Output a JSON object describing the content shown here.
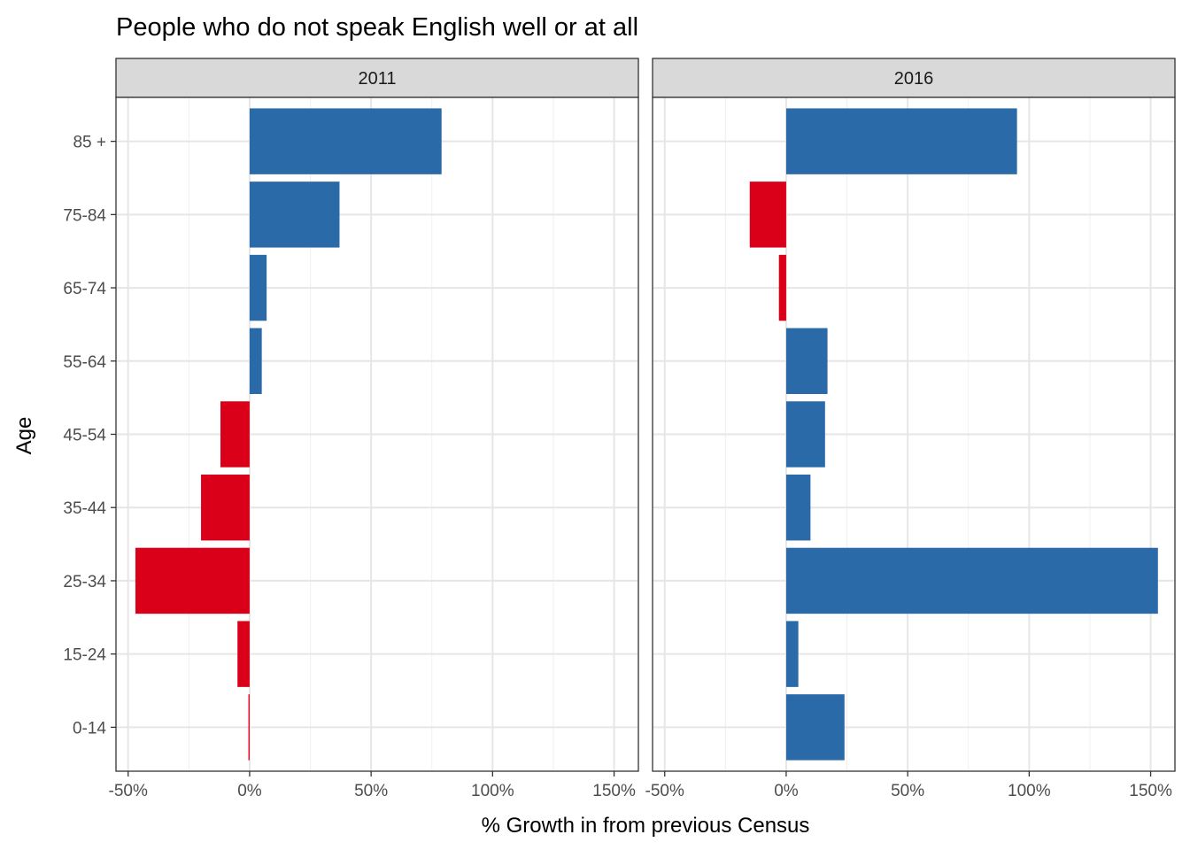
{
  "chart_data": {
    "type": "bar",
    "orientation": "horizontal",
    "title": "People who do not speak English well or at all",
    "xlabel": "% Growth in from previous Census",
    "ylabel": "Age",
    "xlim": [
      -55,
      160
    ],
    "x_ticks": [
      -50,
      0,
      50,
      100,
      150
    ],
    "x_tick_labels": [
      "-50%",
      "0%",
      "50%",
      "100%",
      "150%"
    ],
    "categories": [
      "0-14",
      "15-24",
      "25-34",
      "35-44",
      "45-54",
      "55-64",
      "65-74",
      "75-84",
      "85 +"
    ],
    "grid": true,
    "colors": {
      "positive": "#2b6aa8",
      "negative": "#db0019"
    },
    "panels": [
      {
        "name": "2011",
        "values": [
          -0.5,
          -5,
          -47,
          -20,
          -12,
          5,
          7,
          37,
          79
        ]
      },
      {
        "name": "2016",
        "values": [
          24,
          5,
          153,
          10,
          16,
          17,
          -3,
          -15,
          95
        ]
      }
    ]
  }
}
